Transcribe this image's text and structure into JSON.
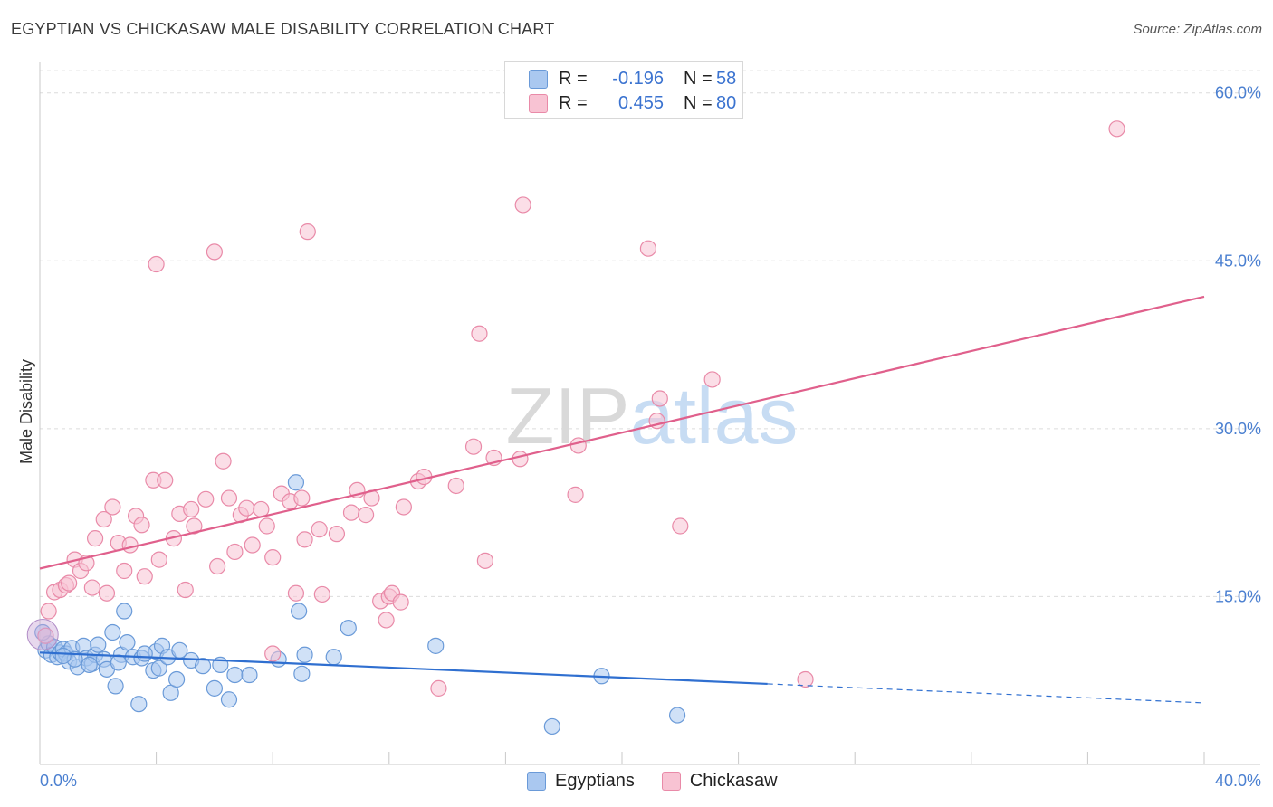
{
  "title": "EGYPTIAN VS CHICKASAW MALE DISABILITY CORRELATION CHART",
  "source": "Source: ZipAtlas.com",
  "watermark": "ZIPatlas",
  "legend": [
    {
      "series": "Egyptians",
      "r_label": "R =",
      "r_value": "-0.196",
      "n_label": "N =",
      "n_value": "58",
      "color": "#aac8f0",
      "border": "#6a9ad8"
    },
    {
      "series": "Chickasaw",
      "r_label": "R =",
      "r_value": "0.455",
      "n_label": "N =",
      "n_value": "80",
      "color": "#f8c3d3",
      "border": "#e98aa8"
    }
  ],
  "chart_data": {
    "type": "scatter",
    "title": "EGYPTIAN VS CHICKASAW MALE DISABILITY CORRELATION CHART",
    "xlabel": "",
    "ylabel": "Male Disability",
    "xlim": [
      0,
      40
    ],
    "ylim": [
      0,
      62
    ],
    "x_tick_labels": [
      "0.0%",
      "40.0%"
    ],
    "y_ticks": [
      15,
      30,
      45,
      60
    ],
    "y_tick_labels": [
      "15.0%",
      "30.0%",
      "45.0%",
      "60.0%"
    ],
    "grid": true,
    "series": [
      {
        "name": "Egyptians",
        "color": "#6a9ad8",
        "fill": "#aac8f0",
        "trend": {
          "x0": 0,
          "y0": 10.0,
          "x1": 25,
          "y1": 7.2,
          "dash_to_x": 40,
          "dash_to_y": 5.5,
          "color": "#2f6fd0"
        },
        "points": [
          [
            0.2,
            10.2
          ],
          [
            0.3,
            10.8
          ],
          [
            0.4,
            9.8
          ],
          [
            0.5,
            10.5
          ],
          [
            0.6,
            9.6
          ],
          [
            0.7,
            10.0
          ],
          [
            0.8,
            10.3
          ],
          [
            0.9,
            9.9
          ],
          [
            1.0,
            9.2
          ],
          [
            1.1,
            10.4
          ],
          [
            1.3,
            8.7
          ],
          [
            1.5,
            10.6
          ],
          [
            1.6,
            9.5
          ],
          [
            1.8,
            9.0
          ],
          [
            1.9,
            9.8
          ],
          [
            2.0,
            10.7
          ],
          [
            2.2,
            9.4
          ],
          [
            2.3,
            8.5
          ],
          [
            2.5,
            11.8
          ],
          [
            2.6,
            7.0
          ],
          [
            2.8,
            9.8
          ],
          [
            2.9,
            13.7
          ],
          [
            3.0,
            10.9
          ],
          [
            3.2,
            9.6
          ],
          [
            3.4,
            5.4
          ],
          [
            3.5,
            9.5
          ],
          [
            3.9,
            8.4
          ],
          [
            4.0,
            10.1
          ],
          [
            4.1,
            8.6
          ],
          [
            4.2,
            10.6
          ],
          [
            4.4,
            9.6
          ],
          [
            4.5,
            6.4
          ],
          [
            4.7,
            7.6
          ],
          [
            4.8,
            10.2
          ],
          [
            5.2,
            9.3
          ],
          [
            5.6,
            8.8
          ],
          [
            6.0,
            6.8
          ],
          [
            6.2,
            8.9
          ],
          [
            6.5,
            5.8
          ],
          [
            6.7,
            8.0
          ],
          [
            7.2,
            8.0
          ],
          [
            8.2,
            9.4
          ],
          [
            8.8,
            25.2
          ],
          [
            8.9,
            13.7
          ],
          [
            9.0,
            8.1
          ],
          [
            9.1,
            9.8
          ],
          [
            10.1,
            9.6
          ],
          [
            10.6,
            12.2
          ],
          [
            1.2,
            9.4
          ],
          [
            0.8,
            9.7
          ],
          [
            1.7,
            8.9
          ],
          [
            2.7,
            9.1
          ],
          [
            3.6,
            9.9
          ],
          [
            13.6,
            10.6
          ],
          [
            17.6,
            3.4
          ],
          [
            19.3,
            7.9
          ],
          [
            21.9,
            4.4
          ],
          [
            0.1,
            11.8
          ]
        ]
      },
      {
        "name": "Chickasaw",
        "color": "#e98aa8",
        "fill": "#f8c3d3",
        "trend": {
          "x0": 0,
          "y0": 17.5,
          "x1": 40,
          "y1": 41.8,
          "color": "#e0608c"
        },
        "points": [
          [
            0.3,
            13.7
          ],
          [
            0.5,
            15.4
          ],
          [
            0.7,
            15.6
          ],
          [
            0.9,
            16.0
          ],
          [
            1.0,
            16.2
          ],
          [
            1.2,
            18.3
          ],
          [
            1.4,
            17.3
          ],
          [
            1.6,
            18.0
          ],
          [
            1.8,
            15.8
          ],
          [
            1.9,
            20.2
          ],
          [
            2.2,
            21.9
          ],
          [
            2.3,
            15.3
          ],
          [
            2.5,
            23.0
          ],
          [
            2.7,
            19.8
          ],
          [
            2.9,
            17.3
          ],
          [
            3.1,
            19.6
          ],
          [
            3.3,
            22.2
          ],
          [
            3.5,
            21.4
          ],
          [
            3.6,
            16.8
          ],
          [
            3.9,
            25.4
          ],
          [
            4.1,
            18.3
          ],
          [
            4.3,
            25.4
          ],
          [
            4.6,
            20.2
          ],
          [
            4.8,
            22.4
          ],
          [
            5.0,
            15.6
          ],
          [
            5.2,
            22.8
          ],
          [
            5.3,
            21.3
          ],
          [
            5.7,
            23.7
          ],
          [
            6.1,
            17.7
          ],
          [
            6.3,
            27.1
          ],
          [
            6.5,
            23.8
          ],
          [
            6.7,
            19.0
          ],
          [
            6.9,
            22.3
          ],
          [
            7.1,
            22.9
          ],
          [
            7.3,
            19.6
          ],
          [
            7.6,
            22.8
          ],
          [
            7.8,
            21.3
          ],
          [
            8.0,
            18.5
          ],
          [
            8.3,
            24.2
          ],
          [
            8.6,
            23.5
          ],
          [
            8.8,
            15.3
          ],
          [
            9.0,
            23.8
          ],
          [
            9.1,
            20.1
          ],
          [
            9.6,
            21.0
          ],
          [
            9.7,
            15.2
          ],
          [
            10.2,
            20.6
          ],
          [
            10.7,
            22.5
          ],
          [
            10.9,
            24.5
          ],
          [
            11.2,
            22.3
          ],
          [
            11.4,
            23.8
          ],
          [
            11.7,
            14.6
          ],
          [
            11.9,
            12.9
          ],
          [
            12.0,
            15.0
          ],
          [
            12.1,
            15.3
          ],
          [
            12.5,
            23.0
          ],
          [
            13.0,
            25.3
          ],
          [
            13.2,
            25.7
          ],
          [
            14.3,
            24.9
          ],
          [
            14.9,
            28.4
          ],
          [
            15.3,
            18.2
          ],
          [
            15.6,
            27.4
          ],
          [
            16.5,
            27.3
          ],
          [
            18.4,
            24.1
          ],
          [
            18.5,
            28.5
          ],
          [
            21.2,
            30.7
          ],
          [
            21.3,
            32.7
          ],
          [
            22.0,
            21.3
          ],
          [
            23.1,
            34.4
          ],
          [
            9.2,
            47.6
          ],
          [
            4.0,
            44.7
          ],
          [
            6.0,
            45.8
          ],
          [
            16.6,
            50.0
          ],
          [
            20.9,
            46.1
          ],
          [
            15.1,
            38.5
          ],
          [
            26.3,
            7.6
          ],
          [
            13.7,
            6.8
          ],
          [
            8.0,
            9.9
          ],
          [
            0.2,
            11.5
          ],
          [
            37.0,
            56.8
          ],
          [
            12.4,
            14.5
          ]
        ]
      }
    ]
  }
}
